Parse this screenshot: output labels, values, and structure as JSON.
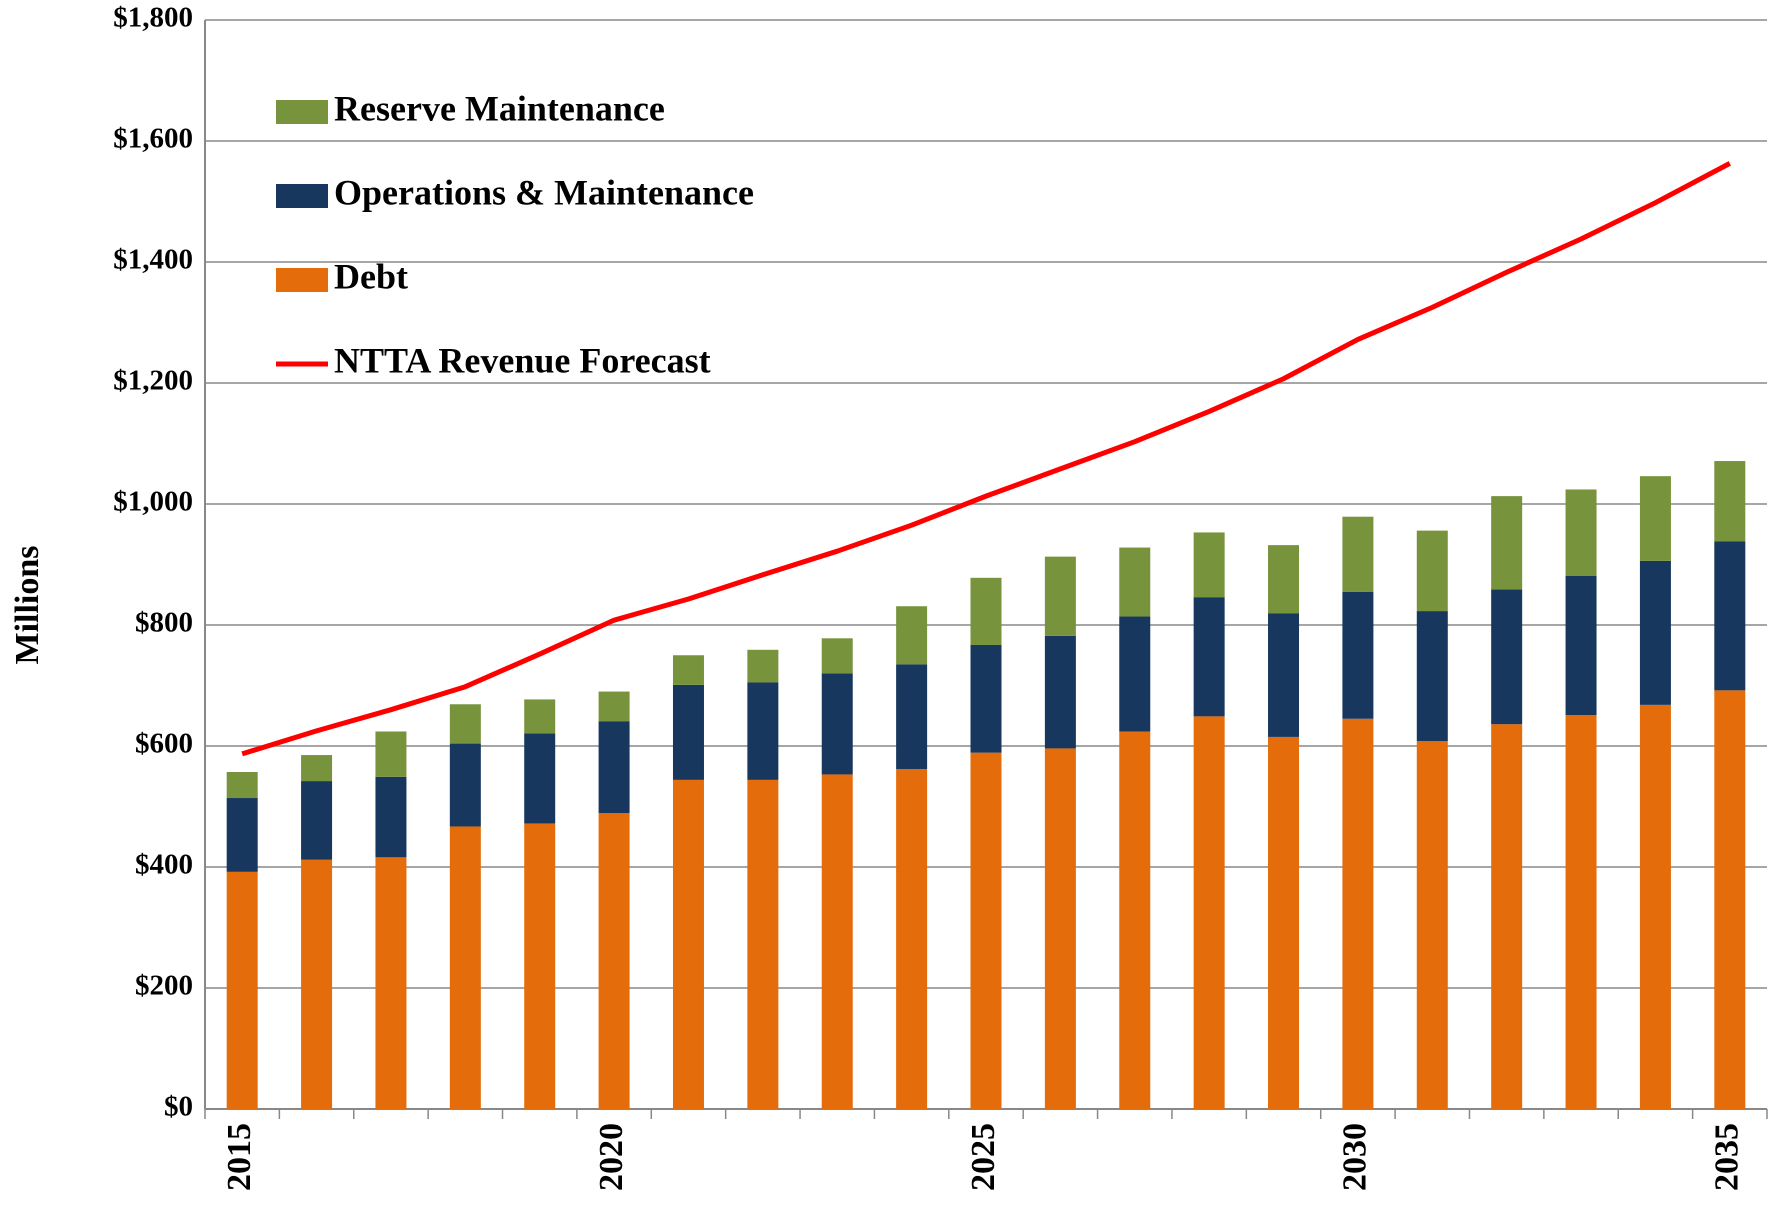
{
  "chart_data": {
    "type": "stacked_bar_line",
    "y_label": "Millions",
    "categories": [
      "2015",
      null,
      null,
      null,
      null,
      "2020",
      null,
      null,
      null,
      null,
      "2025",
      null,
      null,
      null,
      null,
      "2030",
      null,
      null,
      null,
      null,
      "2035"
    ],
    "series": [
      {
        "name": "Debt",
        "color": "#e46c0a",
        "values": [
          392,
          412,
          416,
          467,
          472,
          489,
          544,
          544,
          553,
          562,
          589,
          596,
          624,
          649,
          615,
          645,
          608,
          636,
          651,
          668,
          692
        ]
      },
      {
        "name": "Operations & Maintenance",
        "color": "#17375e",
        "values": [
          122,
          130,
          133,
          137,
          149,
          152,
          157,
          161,
          167,
          173,
          178,
          186,
          190,
          197,
          204,
          210,
          215,
          223,
          230,
          238,
          246
        ]
      },
      {
        "name": "Reserve Maintenance",
        "color": "#77933c",
        "values": [
          43,
          43,
          75,
          65,
          56,
          49,
          49,
          54,
          58,
          96,
          111,
          131,
          114,
          107,
          113,
          124,
          133,
          154,
          143,
          140,
          133
        ]
      },
      {
        "name": "NTTA Revenue Forecast",
        "color": "#ff0000",
        "type": "line",
        "values": [
          587,
          625,
          660,
          698,
          752,
          808,
          843,
          883,
          922,
          965,
          1013,
          1058,
          1103,
          1153,
          1207,
          1272,
          1325,
          1383,
          1438,
          1498,
          1563
        ]
      }
    ],
    "ylim": [
      0,
      1800
    ],
    "yticks": [
      {
        "value": 0,
        "label": "$0"
      },
      {
        "value": 200,
        "label": "$200"
      },
      {
        "value": 400,
        "label": "$400"
      },
      {
        "value": 600,
        "label": "$600"
      },
      {
        "value": 800,
        "label": "$800"
      },
      {
        "value": 1000,
        "label": "$1,000"
      },
      {
        "value": 1200,
        "label": "$1,200"
      },
      {
        "value": 1400,
        "label": "$1,400"
      },
      {
        "value": 1600,
        "label": "$1,600"
      },
      {
        "value": 1800,
        "label": "$1,800"
      }
    ],
    "grid": true,
    "legend": "upper-left"
  }
}
